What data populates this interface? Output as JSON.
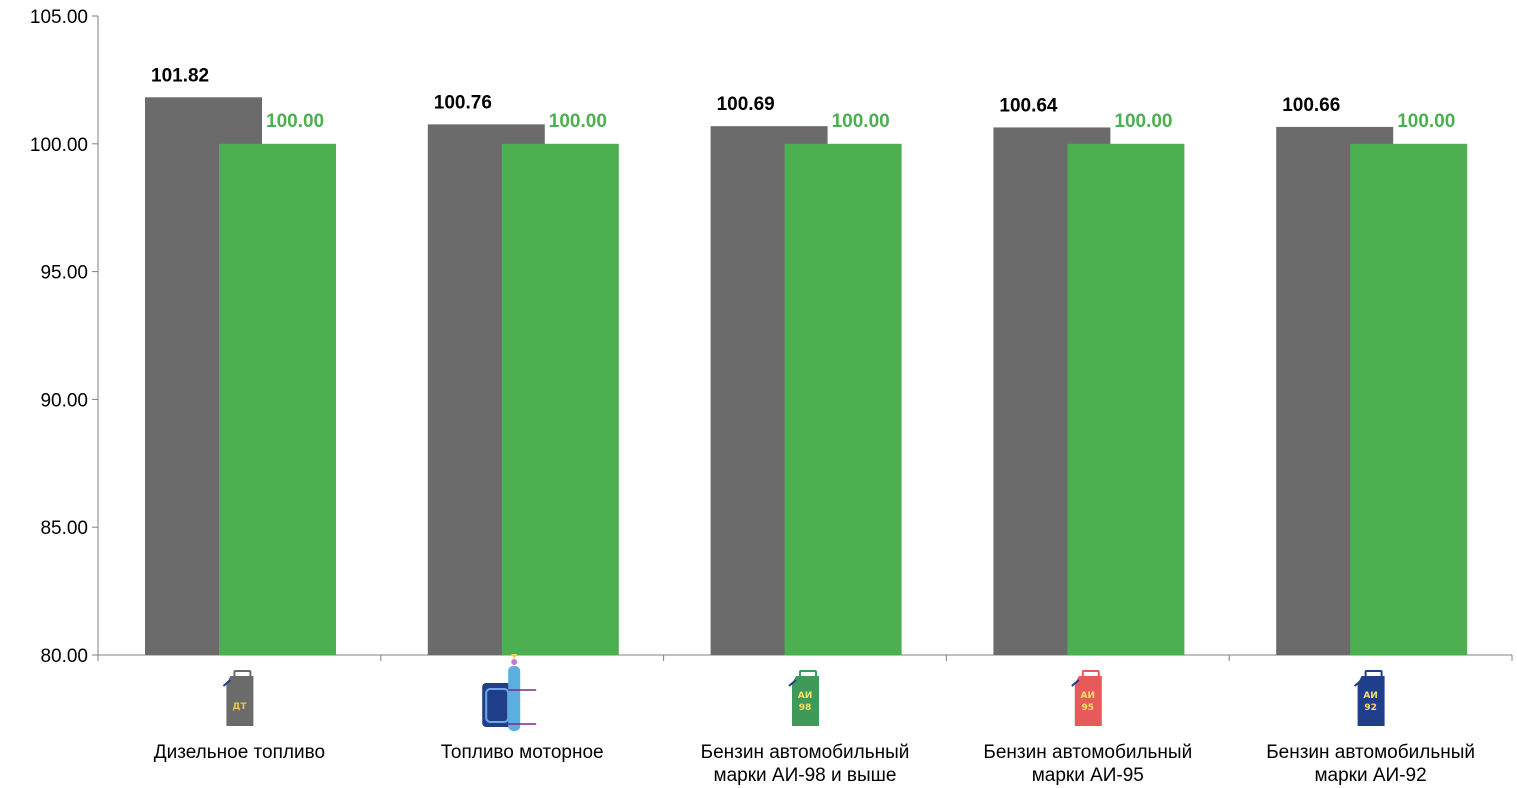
{
  "chart_data": {
    "type": "bar",
    "categories": [
      [
        "Дизельное топливо"
      ],
      [
        "Топливо моторное"
      ],
      [
        "Бензин автомобильный",
        "марки АИ-98 и выше"
      ],
      [
        "Бензин автомобильный",
        "марки АИ-95"
      ],
      [
        "Бензин автомобильный",
        "марки АИ-92"
      ]
    ],
    "series": [
      {
        "color": "#6b6b6b",
        "label_color": "#000000",
        "values": [
          101.82,
          100.76,
          100.69,
          100.64,
          100.66
        ]
      },
      {
        "color": "#4caf50",
        "label_color": "#4caf50",
        "values": [
          100.0,
          100.0,
          100.0,
          100.0,
          100.0
        ]
      }
    ],
    "ylim": [
      80,
      105
    ],
    "yticks": [
      "80.00",
      "85.00",
      "90.00",
      "95.00",
      "100.00",
      "105.00"
    ],
    "grid": false,
    "legend": "none"
  },
  "icons": [
    {
      "name": "diesel-canister-icon",
      "text": [
        "ДТ"
      ],
      "color": "#6b6b6b",
      "text_color": "#e8c35a"
    },
    {
      "name": "gas-canister-cylinder-icon",
      "text": [],
      "color": "#1f3f8a",
      "text_color": "#ffffff"
    },
    {
      "name": "ai98-canister-icon",
      "text": [
        "АИ",
        "98"
      ],
      "color": "#3f9a5a",
      "text_color": "#f2e06a"
    },
    {
      "name": "ai95-canister-icon",
      "text": [
        "АИ",
        "95"
      ],
      "color": "#e85a5a",
      "text_color": "#f2e06a"
    },
    {
      "name": "ai92-canister-icon",
      "text": [
        "АИ",
        "92"
      ],
      "color": "#1f3f8a",
      "text_color": "#f2e06a"
    }
  ]
}
